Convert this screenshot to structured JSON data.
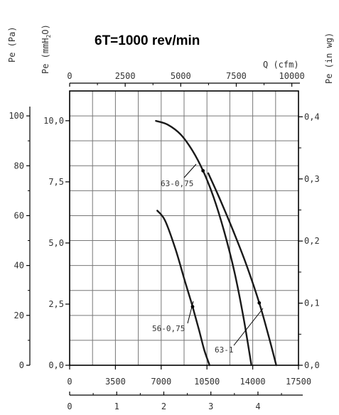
{
  "chart_data": {
    "type": "line",
    "title": "6T=1000 rev/min",
    "axes": {
      "left_pa": {
        "label": "Pe (Pa)",
        "ticks": [
          "0",
          "20",
          "40",
          "60",
          "80",
          "100"
        ],
        "range": [
          0,
          110
        ]
      },
      "left_mmh2o": {
        "label": "Pe (mmH2O)",
        "label_main": "Pe (mmH",
        "label_sub": "2",
        "label_end": "O)",
        "ticks": [
          "0,0",
          "2,5",
          "5,0",
          "7,5",
          "10,0"
        ]
      },
      "right_inwg": {
        "label": "Pe (in wg)",
        "ticks": [
          "0,0",
          "0,1",
          "0,2",
          "0,3",
          "0,4"
        ]
      },
      "top_cfm": {
        "label": "Q (cfm)",
        "ticks": [
          "0",
          "2500",
          "5000",
          "7500",
          "10000"
        ]
      },
      "bottom_m3h": {
        "ticks": [
          "0",
          "3500",
          "7000",
          "10500",
          "14000",
          "17500"
        ],
        "range": [
          0,
          17500
        ]
      },
      "bottom_m3s": {
        "ticks": [
          "0",
          "1",
          "2",
          "3",
          "4"
        ]
      }
    },
    "grid": true,
    "series": [
      {
        "name": "63-0,75",
        "x": [
          6600,
          7500,
          8500,
          9400,
          10200,
          11000,
          11800,
          12600,
          13300,
          13900
        ],
        "y": [
          98,
          96.5,
          92.5,
          86,
          78,
          67.5,
          54,
          37.5,
          19,
          0
        ]
      },
      {
        "name": "56-0,75",
        "x": [
          6700,
          7300,
          8100,
          8800,
          9400,
          9900,
          10300,
          10700
        ],
        "y": [
          62,
          58,
          46.5,
          34,
          23.5,
          14,
          6,
          0
        ]
      },
      {
        "name": "63-1",
        "x": [
          10600,
          11500,
          12500,
          13500,
          14500,
          15200,
          15800
        ],
        "y": [
          77,
          66.5,
          54,
          40.5,
          25,
          12,
          0
        ]
      }
    ],
    "series_labels": [
      "63-0,75",
      "56-0,75",
      "63-1"
    ]
  }
}
